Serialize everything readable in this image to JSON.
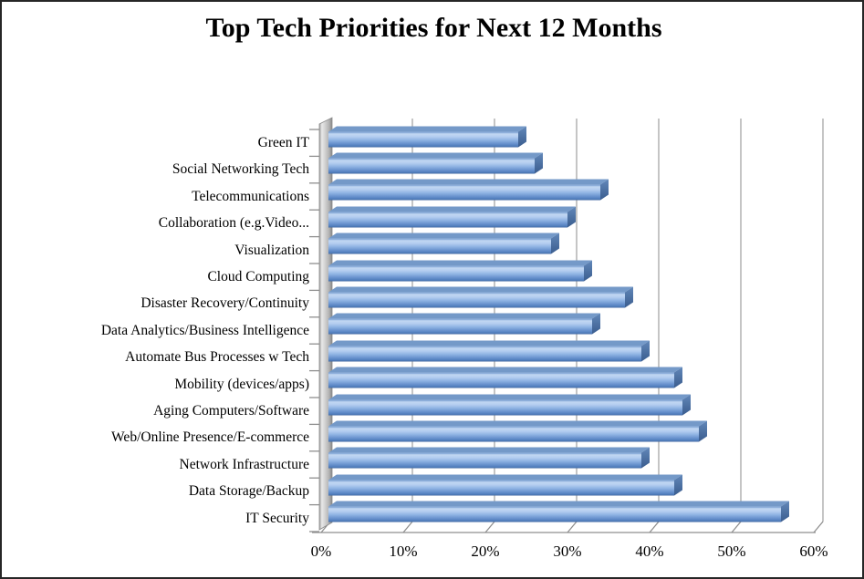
{
  "window": {
    "background_color": "#ffffff",
    "border_color": "#262626"
  },
  "chart_data": {
    "type": "bar",
    "orientation": "horizontal",
    "style": "3d-bevel-excel",
    "title": "Top Tech Priorities for Next 12 Months",
    "categories": [
      "Green IT",
      "Social Networking Tech",
      "Telecommunications",
      "Collaboration (e.g.Video...",
      "Visualization",
      "Cloud Computing",
      "Disaster Recovery/Continuity",
      "Data Analytics/Business Intelligence",
      "Automate Bus Processes w Tech",
      "Mobility (devices/apps)",
      "Aging Computers/Software",
      "Web/Online Presence/E-commerce",
      "Network Infrastructure",
      "Data Storage/Backup",
      "IT Security"
    ],
    "values": [
      24,
      26,
      34,
      30,
      28,
      32,
      37,
      33,
      39,
      43,
      44,
      46,
      39,
      43,
      56
    ],
    "unit": "%",
    "x_ticks": [
      "0%",
      "10%",
      "20%",
      "30%",
      "40%",
      "50%",
      "60%"
    ],
    "xlim": [
      0,
      60
    ],
    "xlabel": "",
    "ylabel": "",
    "legend": "none",
    "grid": "vertical-major",
    "colors": {
      "bar_highlight": "#c2d7f2",
      "bar_mid": "#8db1e2",
      "bar_dark": "#3f659c",
      "bar_cap": "#3a5c8e",
      "wall_light": "#e8e8e8",
      "wall_dark": "#878787",
      "gridline": "#a6a6a6",
      "axis": "#8f8f8f",
      "text": "#000000"
    }
  }
}
